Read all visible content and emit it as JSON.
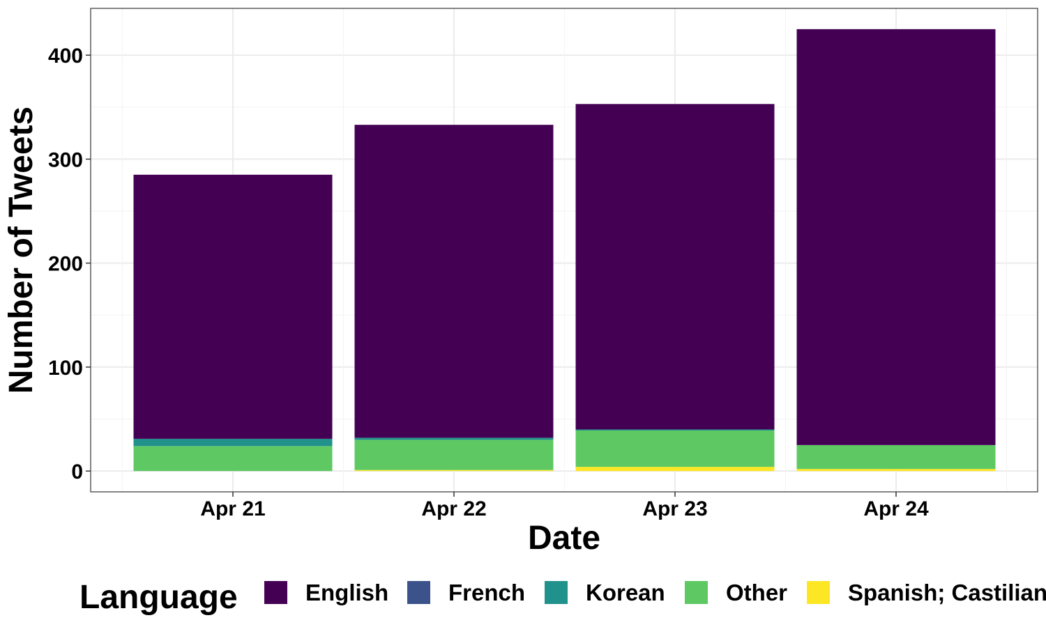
{
  "chart_data": {
    "type": "bar",
    "stacked": true,
    "xlabel": "Date",
    "ylabel": "Number of Tweets",
    "categories": [
      "Apr 21",
      "Apr 22",
      "Apr 23",
      "Apr 24"
    ],
    "ylim": [
      -20,
      445
    ],
    "yticks": [
      0,
      100,
      200,
      300,
      400
    ],
    "grid": true,
    "legend": {
      "title": "Language",
      "position": "bottom"
    },
    "series": [
      {
        "name": "Spanish; Castilian",
        "color": "#FDE725",
        "values": [
          0,
          1,
          4,
          2
        ]
      },
      {
        "name": "Other",
        "color": "#5EC962",
        "values": [
          24,
          29,
          35,
          23
        ]
      },
      {
        "name": "Korean",
        "color": "#21918C",
        "values": [
          7,
          2,
          1,
          0
        ]
      },
      {
        "name": "French",
        "color": "#3B528B",
        "values": [
          0,
          0,
          0,
          0
        ]
      },
      {
        "name": "English",
        "color": "#440154",
        "values": [
          254,
          301,
          313,
          400
        ]
      }
    ],
    "legend_order": [
      "English",
      "French",
      "Korean",
      "Other",
      "Spanish; Castilian"
    ]
  }
}
